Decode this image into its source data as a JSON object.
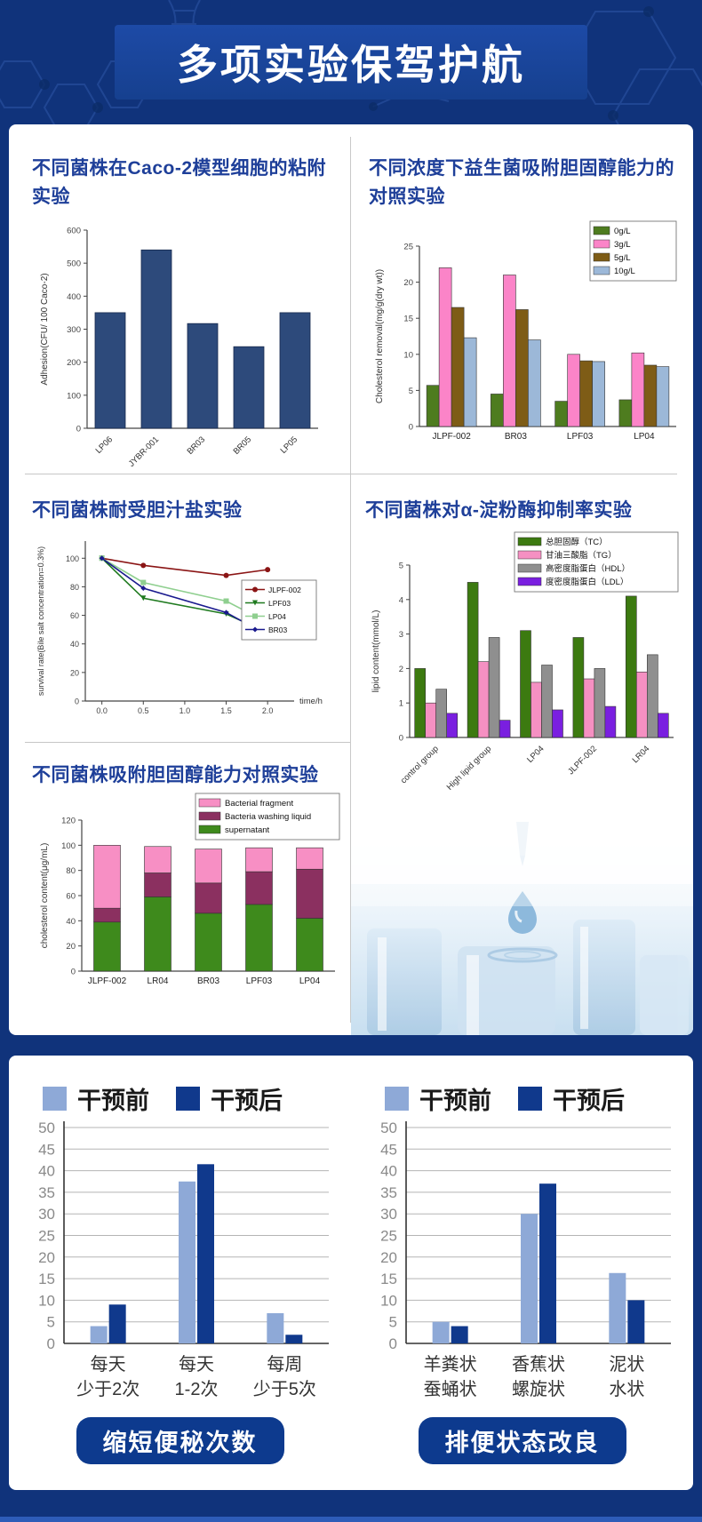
{
  "header": {
    "title": "多项实验保驾护航"
  },
  "colors": {
    "background": "#10337b",
    "card": "#ffffff",
    "chart_title": "#1e3f99",
    "badge": "#0d3a8e",
    "intervention_before": "#8ea9d7",
    "intervention_after": "#10398c",
    "footer_accent": "#2e5cb8"
  },
  "chart_data": [
    {
      "id": "adhesion",
      "type": "bar",
      "title": "不同菌株在Caco-2模型细胞的粘附实验",
      "categories": [
        "LP06",
        "JYBR-001",
        "BR03",
        "BR05",
        "LP05"
      ],
      "values": [
        350,
        540,
        317,
        247,
        350
      ],
      "ylabel": "Adhesion(CFU/ 100 Caco-2)",
      "ylim": [
        0,
        600
      ],
      "ytick": 100,
      "bar_color": "#2d4a7b"
    },
    {
      "id": "cholesterol-removal",
      "type": "bar-grouped",
      "title": "不同浓度下益生菌吸附胆固醇能力的对照实验",
      "categories": [
        "JLPF-002",
        "BR03",
        "LPF03",
        "LP04"
      ],
      "series": [
        {
          "name": "0g/L",
          "color": "#4e7c1f",
          "values": [
            5.7,
            4.5,
            3.5,
            3.7
          ]
        },
        {
          "name": "3g/L",
          "color": "#fb84c8",
          "values": [
            22,
            21,
            10,
            10.2
          ]
        },
        {
          "name": "5g/L",
          "color": "#7e5c16",
          "values": [
            16.5,
            16.2,
            9.1,
            8.5
          ]
        },
        {
          "name": "10g/L",
          "color": "#9cb8d8",
          "values": [
            12.3,
            12,
            9,
            8.3
          ]
        }
      ],
      "ylabel": "Cholesterol removal(mg/g(dry wt))",
      "ylim": [
        0,
        25
      ],
      "ytick": 5,
      "legend_position": "top-right"
    },
    {
      "id": "bile-salt",
      "type": "line",
      "title": "不同菌株耐受胆汁盐实验",
      "x": [
        0.0,
        0.5,
        1.5,
        2.0
      ],
      "xticks": [
        0.0,
        0.5,
        1.0,
        1.5,
        2.0
      ],
      "xlabel": "time/h",
      "series": [
        {
          "name": "JLPF-002",
          "color": "#8b1515",
          "values": [
            100,
            95,
            88,
            92
          ]
        },
        {
          "name": "LPF03",
          "color": "#1f7a1f",
          "values": [
            100,
            72,
            61,
            48
          ]
        },
        {
          "name": "LP04",
          "color": "#8fcf8f",
          "values": [
            100,
            83,
            70,
            55
          ]
        },
        {
          "name": "BR03",
          "color": "#1a1a8e",
          "values": [
            100,
            79,
            62,
            46
          ]
        }
      ],
      "ylabel": "survival rate(Bile salt concentration=0.3%)",
      "yticks": [
        0,
        20,
        40,
        60,
        80,
        100
      ],
      "ymax": 112
    },
    {
      "id": "lipid-content",
      "type": "bar-grouped",
      "title": "不同菌株对α-淀粉酶抑制率实验",
      "categories": [
        "control group",
        "High lipid group",
        "LP04",
        "JLPF-002",
        "LR04"
      ],
      "series": [
        {
          "name": "总胆固醇（TC）",
          "color": "#3c7a10",
          "values": [
            2.0,
            4.5,
            3.1,
            2.9,
            4.1
          ]
        },
        {
          "name": "甘油三酸脂（TG）",
          "color": "#f590c2",
          "values": [
            1.0,
            2.2,
            1.6,
            1.7,
            1.9
          ]
        },
        {
          "name": "高密度脂蛋白（HDL）",
          "color": "#8f8f8f",
          "values": [
            1.4,
            2.9,
            2.1,
            2.0,
            2.4
          ]
        },
        {
          "name": "度密度脂蛋白（LDL）",
          "color": "#7a1fe0",
          "values": [
            0.7,
            0.5,
            0.8,
            0.9,
            0.7
          ]
        }
      ],
      "ylabel": "lipid content(mmol/L)",
      "ylim": [
        0,
        5
      ],
      "ytick": 1,
      "rotated_labels": true,
      "legend_position": "top-right"
    },
    {
      "id": "cholesterol-content",
      "type": "bar-stacked",
      "title": "不同菌株吸附胆固醇能力对照实验",
      "categories": [
        "JLPF-002",
        "LR04",
        "BR03",
        "LPF03",
        "LP04"
      ],
      "series": [
        {
          "name": "supernatant",
          "color": "#3e8a1c",
          "values": [
            39,
            59,
            46,
            53,
            42
          ]
        },
        {
          "name": "Bacteria washing liquid",
          "color": "#8b3060",
          "values": [
            11,
            19,
            24,
            26,
            39
          ]
        },
        {
          "name": "Bacterial fragment",
          "color": "#f78fc4",
          "values": [
            50,
            21,
            27,
            19,
            17
          ]
        }
      ],
      "ylabel": "cholesterol content(μg/mL)",
      "ylim": [
        0,
        120
      ],
      "ytick": 20,
      "legend_position": "top-right"
    },
    {
      "id": "constipation",
      "type": "bar-pair",
      "categories": [
        [
          "每天",
          "少于2次"
        ],
        [
          "每天",
          "1-2次"
        ],
        [
          "每周",
          "少于5次"
        ]
      ],
      "series": [
        {
          "name": "干预前",
          "color": "#8ea9d7",
          "values": [
            4,
            37.5,
            7
          ]
        },
        {
          "name": "干预后",
          "color": "#10398c",
          "values": [
            9,
            41.5,
            2
          ]
        }
      ],
      "ylim": [
        0,
        50
      ],
      "ytick": 5,
      "caption": "缩短便秘次数"
    },
    {
      "id": "stool-state",
      "type": "bar-pair",
      "categories": [
        [
          "羊粪状",
          "蚕蛹状"
        ],
        [
          "香蕉状",
          "螺旋状"
        ],
        [
          "泥状",
          "水状"
        ]
      ],
      "series": [
        {
          "name": "干预前",
          "color": "#8ea9d7",
          "values": [
            5,
            30,
            16.3
          ]
        },
        {
          "name": "干预后",
          "color": "#10398c",
          "values": [
            4,
            37,
            10
          ]
        }
      ],
      "ylim": [
        0,
        50
      ],
      "ytick": 5,
      "caption": "排便状态改良"
    }
  ]
}
